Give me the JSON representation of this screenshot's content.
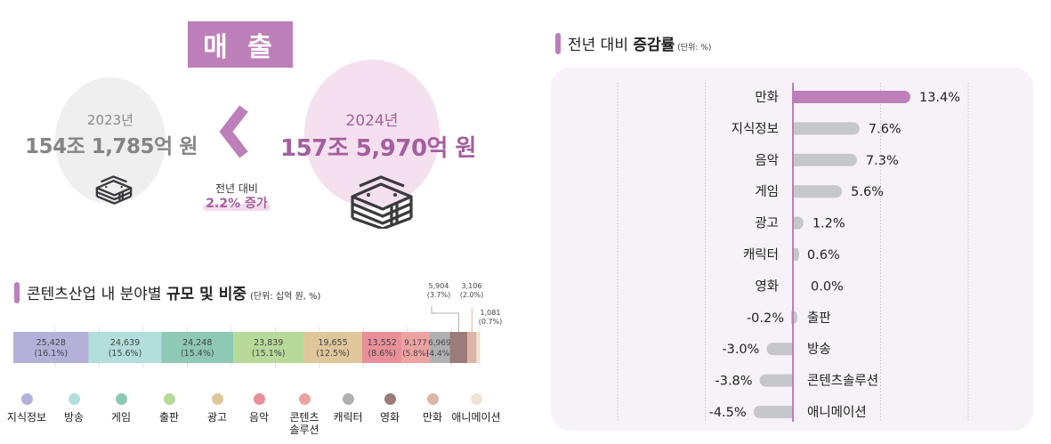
{
  "sales": {
    "badge": "매 출",
    "year_2023": "2023년",
    "value_2023": "154조 1,785억 원",
    "year_2024": "2024년",
    "value_2024": "157조 5,970억 원",
    "yoy_label": "전년 대비",
    "yoy_value": "2.2% 증가",
    "icons": [
      "money-stack-icon",
      "chevron-left-icon"
    ]
  },
  "share_section": {
    "title_normal": "콘텐츠산업 내 분야별 ",
    "title_bold": "규모 및 비중",
    "unit": "(단위: 십억 원, %)"
  },
  "growth_section": {
    "title_normal": "전년 대비 ",
    "title_bold": "증감률",
    "unit": "(단위: %)"
  },
  "colors": {
    "accent": "#bd7fb9",
    "accent_text": "#a45f9e",
    "bar_gray": "#c6c7ca",
    "panel_bg": "#f7f1f8"
  },
  "chart_data": [
    {
      "type": "bar",
      "orientation": "horizontal-stacked-100",
      "title": "콘텐츠산업 내 분야별 규모 및 비중",
      "unit": "십억 원, %",
      "categories": [
        "지식정보",
        "방송",
        "게임",
        "출판",
        "광고",
        "음악",
        "콘텐츠솔루션",
        "캐릭터",
        "영화",
        "만화",
        "애니메이션"
      ],
      "legend_labels": [
        "지식정보",
        "방송",
        "게임",
        "출판",
        "광고",
        "음악",
        "콘텐츠\n솔루션",
        "캐릭터",
        "영화",
        "만화",
        "애니메이션"
      ],
      "values": [
        25428,
        24639,
        24248,
        23839,
        19655,
        13552,
        9177,
        6969,
        5904,
        3106,
        1081
      ],
      "value_labels": [
        "25,428",
        "24,639",
        "24,248",
        "23,839",
        "19,655",
        "13,552",
        "9,177",
        "6,969",
        "5,904",
        "3,106",
        "1,081"
      ],
      "shares": [
        "16.1%",
        "15.6%",
        "15.4%",
        "15.1%",
        "12.5%",
        "8.6%",
        "5.8%",
        "4.4%",
        "3.7%",
        "2.0%",
        "0.7%"
      ],
      "colors": [
        "#b3b1d9",
        "#b2dedb",
        "#8dc9b4",
        "#b7d99a",
        "#dfc79a",
        "#e8909a",
        "#eda3a2",
        "#b0b0b2",
        "#9b7c78",
        "#dbb5a6",
        "#efe3d3"
      ],
      "legend": "bottom"
    },
    {
      "type": "bar",
      "orientation": "horizontal",
      "title": "전년 대비 증감률",
      "unit": "%",
      "categories": [
        "만화",
        "지식정보",
        "음악",
        "게임",
        "광고",
        "캐릭터",
        "영화",
        "출판",
        "방송",
        "콘텐츠솔루션",
        "애니메이션"
      ],
      "values": [
        13.4,
        7.6,
        7.3,
        5.6,
        1.2,
        0.6,
        0.0,
        -0.2,
        -3.0,
        -3.8,
        -4.5
      ],
      "value_labels": [
        "13.4%",
        "7.6%",
        "7.3%",
        "5.6%",
        "1.2%",
        "0.6%",
        "0.0%",
        "-0.2%",
        "-3.0%",
        "-3.8%",
        "-4.5%"
      ],
      "highlight_index": 0,
      "xlim": [
        -20,
        20
      ],
      "grid_x": [
        -20,
        -10,
        10,
        20
      ],
      "grid": true
    }
  ]
}
